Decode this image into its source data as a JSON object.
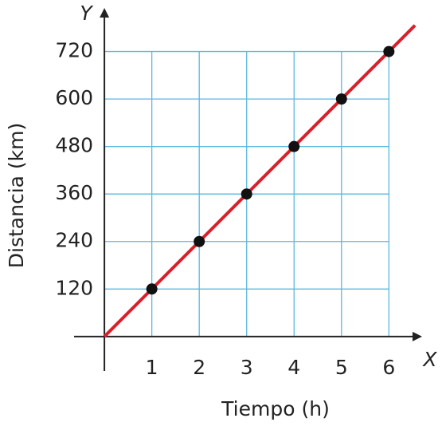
{
  "chart_data": {
    "type": "line",
    "x_axis_name": "X",
    "y_axis_name": "Y",
    "xlabel": "Tiempo (h)",
    "ylabel": "Distancia (km)",
    "x": [
      1,
      2,
      3,
      4,
      5,
      6
    ],
    "values": [
      120,
      240,
      360,
      480,
      600,
      720
    ],
    "point_color": "#111111",
    "line": {
      "x": [
        0,
        6.55
      ],
      "values": [
        0,
        786
      ],
      "color": "#d7202c"
    },
    "xlim": [
      -0.64,
      6.7
    ],
    "ylim": [
      -87,
      830
    ],
    "xticks": [
      1,
      2,
      3,
      4,
      5,
      6
    ],
    "yticks": [
      120,
      240,
      360,
      480,
      600,
      720
    ],
    "grid": true,
    "grid_color": "#5bb8e0"
  }
}
